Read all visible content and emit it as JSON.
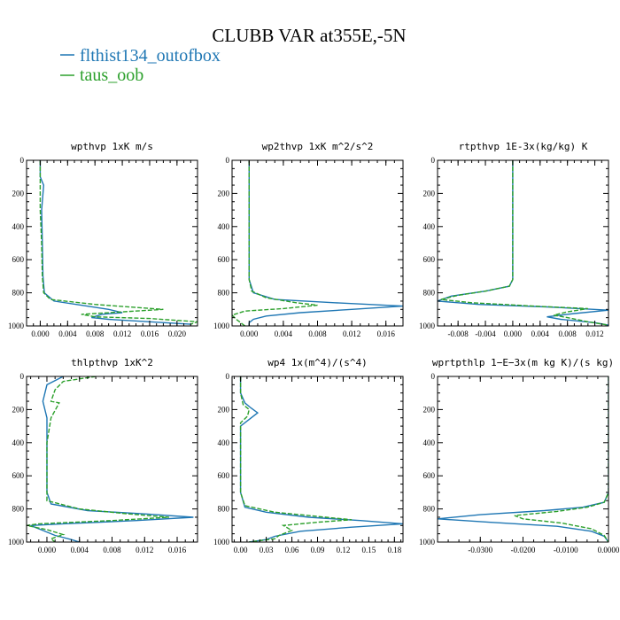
{
  "figure": {
    "title": "CLUBB VAR at355E,-5N",
    "legend": [
      {
        "label": "flthist134_outofbox",
        "color": "#1f77b4",
        "dash": "solid"
      },
      {
        "label": "taus_oob",
        "color": "#2ca02c",
        "dash": "dashed"
      }
    ]
  },
  "chart_data": [
    {
      "type": "line",
      "title": "wpthvp  1xK m/s",
      "xlim": [
        -0.002,
        0.023
      ],
      "ylim": [
        1000,
        0
      ],
      "y_inverted": true,
      "xticks": [
        0.0,
        0.004,
        0.008,
        0.012,
        0.016,
        0.02
      ],
      "xtick_labels": [
        "0.000",
        "0.004",
        "0.008",
        "0.012",
        "0.016",
        "0.020"
      ],
      "yticks": [
        0,
        200,
        400,
        600,
        800,
        1000
      ],
      "ytick_labels": [
        "0",
        "200",
        "400",
        "600",
        "800",
        "1000"
      ],
      "series": [
        {
          "name": "flthist134_outofbox",
          "points": [
            [
              0.0,
              0
            ],
            [
              0.0,
              100
            ],
            [
              0.0005,
              150
            ],
            [
              0.0002,
              300
            ],
            [
              0.0003,
              500
            ],
            [
              0.0004,
              700
            ],
            [
              0.0006,
              800
            ],
            [
              0.002,
              850
            ],
            [
              0.006,
              875
            ],
            [
              0.01,
              900
            ],
            [
              0.012,
              920
            ],
            [
              0.009,
              930
            ],
            [
              0.0075,
              950
            ],
            [
              0.01,
              960
            ],
            [
              0.016,
              975
            ],
            [
              0.022,
              990
            ]
          ]
        },
        {
          "name": "taus_oob",
          "points": [
            [
              0.0,
              0
            ],
            [
              0.0,
              100
            ],
            [
              0.0,
              300
            ],
            [
              0.0002,
              500
            ],
            [
              0.0003,
              700
            ],
            [
              0.0005,
              800
            ],
            [
              0.0015,
              840
            ],
            [
              0.008,
              870
            ],
            [
              0.018,
              900
            ],
            [
              0.012,
              915
            ],
            [
              0.006,
              930
            ],
            [
              0.008,
              945
            ],
            [
              0.016,
              955
            ],
            [
              0.023,
              975
            ],
            [
              0.022,
              990
            ]
          ]
        }
      ]
    },
    {
      "type": "line",
      "title": "wp2thvp  1xK m^2/s^2",
      "xlim": [
        -0.002,
        0.018
      ],
      "ylim": [
        1000,
        0
      ],
      "y_inverted": true,
      "xticks": [
        0.0,
        0.004,
        0.008,
        0.012,
        0.016
      ],
      "xtick_labels": [
        "0.000",
        "0.004",
        "0.008",
        "0.012",
        "0.016"
      ],
      "yticks": [
        0,
        200,
        400,
        600,
        800,
        1000
      ],
      "ytick_labels": [
        "0",
        "200",
        "400",
        "600",
        "800",
        "1000"
      ],
      "series": [
        {
          "name": "flthist134_outofbox",
          "points": [
            [
              0.0,
              0
            ],
            [
              0.0,
              200
            ],
            [
              0.0,
              400
            ],
            [
              0.0,
              600
            ],
            [
              0.0,
              720
            ],
            [
              0.0005,
              800
            ],
            [
              0.003,
              840
            ],
            [
              0.01,
              860
            ],
            [
              0.018,
              880
            ],
            [
              0.012,
              900
            ],
            [
              0.006,
              920
            ],
            [
              0.002,
              940
            ],
            [
              0.0005,
              960
            ],
            [
              0.0,
              980
            ],
            [
              0.0,
              1000
            ]
          ]
        },
        {
          "name": "taus_oob",
          "points": [
            [
              0.0,
              0
            ],
            [
              0.0,
              200
            ],
            [
              0.0,
              400
            ],
            [
              0.0,
              600
            ],
            [
              0.0,
              720
            ],
            [
              0.0003,
              790
            ],
            [
              0.002,
              830
            ],
            [
              0.0055,
              860
            ],
            [
              0.008,
              875
            ],
            [
              0.004,
              895
            ],
            [
              -0.0005,
              910
            ],
            [
              -0.002,
              935
            ],
            [
              -0.0015,
              960
            ],
            [
              -0.0005,
              1000
            ]
          ]
        }
      ]
    },
    {
      "type": "line",
      "title": "rtpthvp  1E-3x(kg/kg) K",
      "xlim": [
        -0.011,
        0.014
      ],
      "ylim": [
        1000,
        0
      ],
      "y_inverted": true,
      "xticks": [
        -0.008,
        -0.004,
        0.0,
        0.004,
        0.008,
        0.012
      ],
      "xtick_labels": [
        "-0.008",
        "-0.004",
        "0.000",
        "0.004",
        "0.008",
        "0.012"
      ],
      "yticks": [
        0,
        200,
        400,
        600,
        800,
        1000
      ],
      "ytick_labels": [
        "0",
        "200",
        "400",
        "600",
        "800",
        "1000"
      ],
      "series": [
        {
          "name": "flthist134_outofbox",
          "points": [
            [
              0.0,
              0
            ],
            [
              0.0,
              200
            ],
            [
              0.0,
              400
            ],
            [
              0.0,
              600
            ],
            [
              0.0,
              720
            ],
            [
              -0.0005,
              760
            ],
            [
              -0.004,
              790
            ],
            [
              -0.009,
              820
            ],
            [
              -0.011,
              850
            ],
            [
              -0.005,
              870
            ],
            [
              0.005,
              885
            ],
            [
              0.014,
              905
            ],
            [
              0.009,
              925
            ],
            [
              0.005,
              945
            ],
            [
              0.007,
              960
            ],
            [
              0.012,
              980
            ],
            [
              0.014,
              995
            ]
          ]
        },
        {
          "name": "taus_oob",
          "points": [
            [
              0.0,
              0
            ],
            [
              0.0,
              200
            ],
            [
              0.0,
              400
            ],
            [
              0.0,
              600
            ],
            [
              0.0,
              720
            ],
            [
              -0.0005,
              760
            ],
            [
              -0.004,
              790
            ],
            [
              -0.008,
              815
            ],
            [
              -0.0105,
              840
            ],
            [
              -0.006,
              860
            ],
            [
              0.003,
              880
            ],
            [
              0.011,
              895
            ],
            [
              0.008,
              915
            ],
            [
              0.006,
              935
            ],
            [
              0.008,
              950
            ],
            [
              0.011,
              975
            ],
            [
              0.014,
              995
            ]
          ]
        }
      ]
    },
    {
      "type": "line",
      "title": "thlpthvp  1xK^2",
      "xlim": [
        -0.0025,
        0.0185
      ],
      "ylim": [
        1000,
        0
      ],
      "y_inverted": true,
      "xticks": [
        0.0,
        0.004,
        0.008,
        0.012,
        0.016
      ],
      "xtick_labels": [
        "0.000",
        "0.004",
        "0.008",
        "0.012",
        "0.016"
      ],
      "yticks": [
        0,
        200,
        400,
        600,
        800,
        1000
      ],
      "ytick_labels": [
        "0",
        "200",
        "400",
        "600",
        "800",
        "1000"
      ],
      "series": [
        {
          "name": "flthist134_outofbox",
          "points": [
            [
              0.002,
              0
            ],
            [
              0.0,
              50
            ],
            [
              -0.0005,
              150
            ],
            [
              0.0,
              250
            ],
            [
              0.0,
              500
            ],
            [
              0.0,
              700
            ],
            [
              0.0005,
              770
            ],
            [
              0.005,
              810
            ],
            [
              0.012,
              830
            ],
            [
              0.018,
              850
            ],
            [
              0.011,
              870
            ],
            [
              0.002,
              890
            ],
            [
              -0.002,
              900
            ],
            [
              -0.0005,
              930
            ],
            [
              0.001,
              960
            ],
            [
              0.003,
              985
            ],
            [
              0.004,
              1000
            ]
          ]
        },
        {
          "name": "taus_oob",
          "points": [
            [
              0.006,
              0
            ],
            [
              0.002,
              30
            ],
            [
              0.001,
              80
            ],
            [
              0.0005,
              150
            ],
            [
              0.0015,
              160
            ],
            [
              0.0005,
              250
            ],
            [
              0.0,
              400
            ],
            [
              0.0,
              600
            ],
            [
              0.0,
              750
            ],
            [
              0.004,
              800
            ],
            [
              0.01,
              830
            ],
            [
              0.015,
              850
            ],
            [
              0.008,
              870
            ],
            [
              -0.001,
              890
            ],
            [
              -0.0025,
              900
            ],
            [
              0.0,
              925
            ],
            [
              0.002,
              955
            ],
            [
              0.0005,
              980
            ],
            [
              0.001,
              1000
            ]
          ]
        }
      ]
    },
    {
      "type": "line",
      "title": "wp4  1x(m^4)/(s^4)",
      "xlim": [
        -0.01,
        0.19
      ],
      "ylim": [
        1000,
        0
      ],
      "y_inverted": true,
      "xticks": [
        0.0,
        0.03,
        0.06,
        0.09,
        0.12,
        0.15,
        0.18
      ],
      "xtick_labels": [
        "0.00",
        "0.03",
        "0.06",
        "0.09",
        "0.12",
        "0.15",
        "0.18"
      ],
      "yticks": [
        0,
        200,
        400,
        600,
        800,
        1000
      ],
      "ytick_labels": [
        "0",
        "200",
        "400",
        "600",
        "800",
        "1000"
      ],
      "series": [
        {
          "name": "flthist134_outofbox",
          "points": [
            [
              0.0,
              0
            ],
            [
              0.0,
              100
            ],
            [
              0.005,
              160
            ],
            [
              0.012,
              190
            ],
            [
              0.02,
              220
            ],
            [
              0.01,
              260
            ],
            [
              0.0,
              300
            ],
            [
              0.0,
              500
            ],
            [
              0.0,
              700
            ],
            [
              0.005,
              790
            ],
            [
              0.03,
              820
            ],
            [
              0.08,
              850
            ],
            [
              0.14,
              870
            ],
            [
              0.19,
              890
            ],
            [
              0.13,
              910
            ],
            [
              0.07,
              935
            ],
            [
              0.04,
              965
            ],
            [
              0.03,
              985
            ],
            [
              0.01,
              1000
            ]
          ]
        },
        {
          "name": "taus_oob",
          "points": [
            [
              0.0,
              0
            ],
            [
              0.0,
              100
            ],
            [
              0.003,
              170
            ],
            [
              0.01,
              200
            ],
            [
              0.008,
              240
            ],
            [
              0.0,
              280
            ],
            [
              0.0,
              500
            ],
            [
              0.0,
              700
            ],
            [
              0.005,
              780
            ],
            [
              0.04,
              820
            ],
            [
              0.1,
              850
            ],
            [
              0.13,
              865
            ],
            [
              0.09,
              880
            ],
            [
              0.05,
              900
            ],
            [
              0.06,
              930
            ],
            [
              0.045,
              960
            ],
            [
              0.04,
              980
            ],
            [
              0.01,
              1000
            ]
          ]
        }
      ]
    },
    {
      "type": "line",
      "title": "wprtpthlp  1−E−3x(m kg K)/(s kg)",
      "xlim": [
        -0.04,
        0.0
      ],
      "ylim": [
        1000,
        0
      ],
      "y_inverted": true,
      "xticks": [
        -0.03,
        -0.02,
        -0.01,
        0.0
      ],
      "xtick_labels": [
        "-0.0300",
        "-0.0200",
        "-0.0100",
        "0.0000"
      ],
      "yticks": [
        0,
        200,
        400,
        600,
        800,
        1000
      ],
      "ytick_labels": [
        "0",
        "200",
        "400",
        "600",
        "800",
        "1000"
      ],
      "series": [
        {
          "name": "flthist134_outofbox",
          "points": [
            [
              0.0,
              0
            ],
            [
              0.0,
              300
            ],
            [
              0.0,
              500
            ],
            [
              0.0,
              700
            ],
            [
              -0.001,
              760
            ],
            [
              -0.006,
              790
            ],
            [
              -0.015,
              810
            ],
            [
              -0.03,
              835
            ],
            [
              -0.04,
              860
            ],
            [
              -0.028,
              880
            ],
            [
              -0.012,
              905
            ],
            [
              -0.004,
              935
            ],
            [
              -0.001,
              965
            ],
            [
              0.0,
              1000
            ]
          ]
        },
        {
          "name": "taus_oob",
          "points": [
            [
              0.0,
              0
            ],
            [
              0.0,
              300
            ],
            [
              0.0,
              500
            ],
            [
              0.0,
              700
            ],
            [
              -0.001,
              760
            ],
            [
              -0.005,
              790
            ],
            [
              -0.012,
              815
            ],
            [
              -0.022,
              840
            ],
            [
              -0.02,
              860
            ],
            [
              -0.011,
              885
            ],
            [
              -0.004,
              920
            ],
            [
              -0.001,
              960
            ],
            [
              0.0,
              1000
            ]
          ]
        }
      ]
    }
  ]
}
